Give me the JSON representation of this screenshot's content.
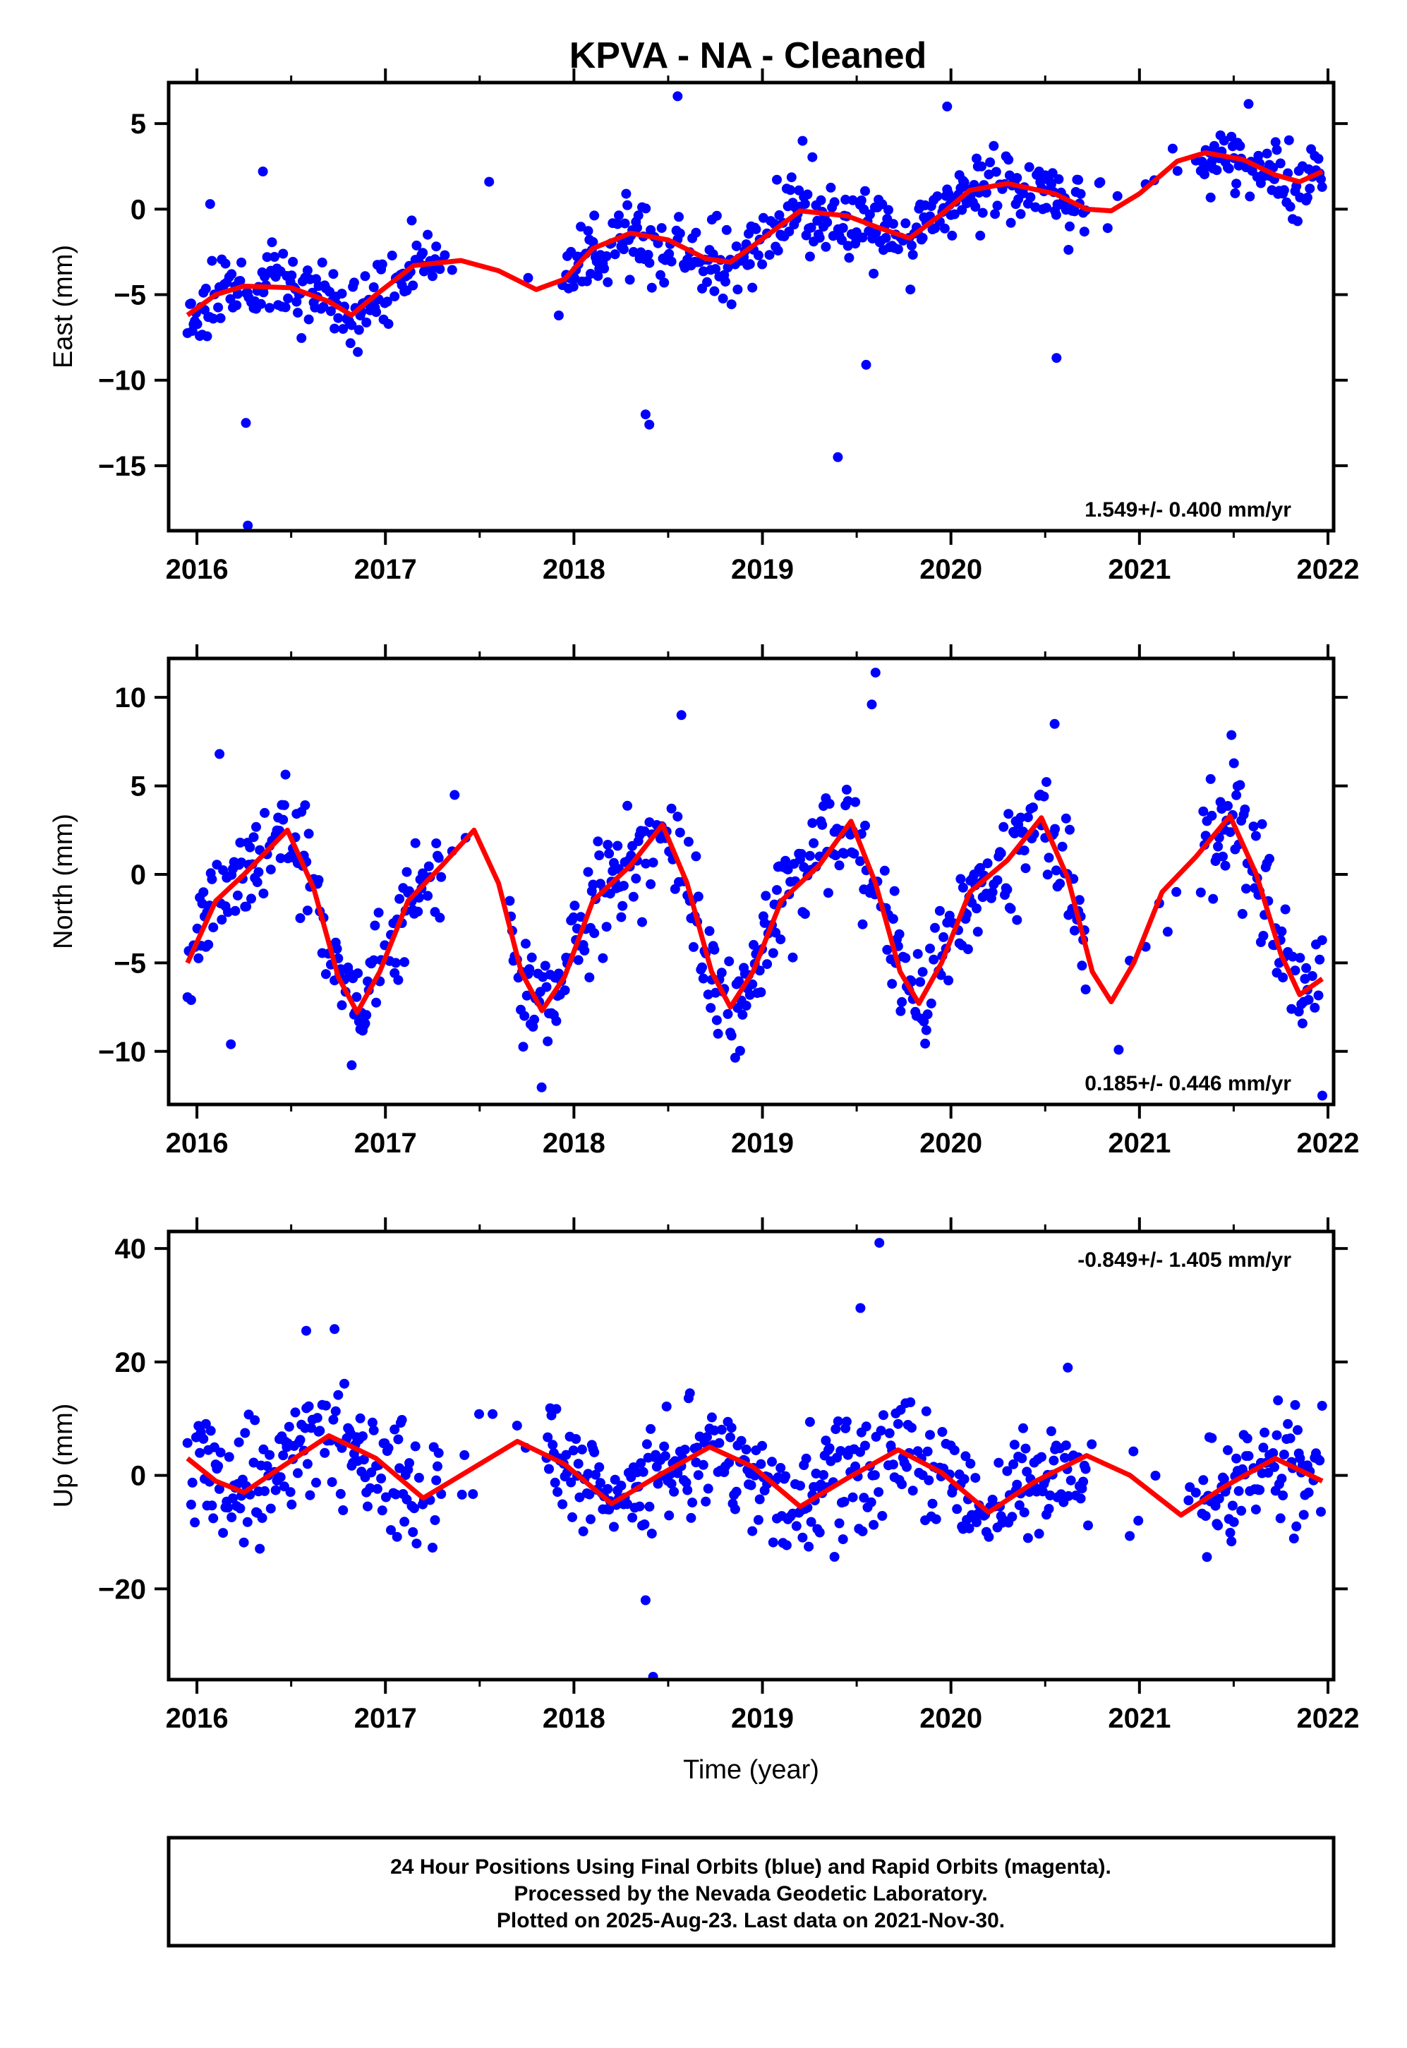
{
  "title": "KPVA  - NA - Cleaned",
  "colors": {
    "points": "#0000ff",
    "model": "#ff0000",
    "frame": "#000000"
  },
  "footer": {
    "line1": "24 Hour Positions Using Final Orbits (blue) and Rapid Orbits (magenta).",
    "line2": "Processed by the Nevada Geodetic Laboratory.",
    "line3": "Plotted on 2025-Aug-23. Last data on 2021-Nov-30."
  },
  "chart_data": [
    {
      "type": "scatter",
      "ylabel": "East (mm)",
      "xlabel": "",
      "rate": "1.549+/- 0.400 mm/yr",
      "rate_position": "bottom-right",
      "xlim": [
        2015.85,
        2022.03
      ],
      "ylim": [
        -18.8,
        7.4
      ],
      "xticks": [
        2016,
        2017,
        2018,
        2019,
        2020,
        2021,
        2022
      ],
      "yticks": [
        5,
        0,
        -5,
        -10,
        -15
      ],
      "gaps": [
        [
          2017.3,
          2017.95
        ],
        [
          2020.72,
          2021.32
        ]
      ],
      "seed": 11,
      "noise": 1.1,
      "outliers": [
        [
          2016.26,
          -12.5
        ],
        [
          2016.27,
          -18.5
        ],
        [
          2018.38,
          -12.0
        ],
        [
          2018.4,
          -12.6
        ],
        [
          2019.4,
          -14.5
        ],
        [
          2016.35,
          2.2
        ],
        [
          2017.55,
          1.6
        ],
        [
          2020.56,
          -8.7
        ],
        [
          2019.55,
          -9.1
        ],
        [
          2016.07,
          0.3
        ],
        [
          2019.98,
          6.0
        ],
        [
          2018.55,
          6.6
        ]
      ],
      "series": [
        {
          "name": "model",
          "values": [
            [
              2015.95,
              -6.2
            ],
            [
              2016.1,
              -5.0
            ],
            [
              2016.25,
              -4.5
            ],
            [
              2016.5,
              -4.6
            ],
            [
              2016.7,
              -5.4
            ],
            [
              2016.82,
              -6.2
            ],
            [
              2016.95,
              -5.0
            ],
            [
              2017.15,
              -3.3
            ],
            [
              2017.4,
              -3.0
            ],
            [
              2017.6,
              -3.6
            ],
            [
              2017.8,
              -4.7
            ],
            [
              2017.95,
              -4.1
            ],
            [
              2018.1,
              -2.3
            ],
            [
              2018.3,
              -1.4
            ],
            [
              2018.5,
              -1.8
            ],
            [
              2018.7,
              -2.9
            ],
            [
              2018.83,
              -3.1
            ],
            [
              2018.98,
              -1.9
            ],
            [
              2019.2,
              -0.1
            ],
            [
              2019.45,
              -0.4
            ],
            [
              2019.62,
              -1.1
            ],
            [
              2019.78,
              -1.7
            ],
            [
              2019.95,
              -0.3
            ],
            [
              2020.1,
              1.1
            ],
            [
              2020.3,
              1.5
            ],
            [
              2020.55,
              0.9
            ],
            [
              2020.72,
              0.0
            ],
            [
              2020.85,
              -0.1
            ],
            [
              2021.0,
              0.9
            ],
            [
              2021.2,
              2.8
            ],
            [
              2021.35,
              3.3
            ],
            [
              2021.55,
              2.9
            ],
            [
              2021.72,
              2.0
            ],
            [
              2021.85,
              1.6
            ],
            [
              2021.97,
              2.2
            ]
          ]
        }
      ]
    },
    {
      "type": "scatter",
      "ylabel": "North (mm)",
      "xlabel": "",
      "rate": "0.185+/- 0.446 mm/yr",
      "rate_position": "bottom-right",
      "xlim": [
        2015.85,
        2022.03
      ],
      "ylim": [
        -13.0,
        12.2
      ],
      "xticks": [
        2016,
        2017,
        2018,
        2019,
        2020,
        2021,
        2022
      ],
      "yticks": [
        10,
        5,
        0,
        -5,
        -10
      ],
      "gaps": [
        [
          2017.3,
          2017.65
        ],
        [
          2020.72,
          2021.32
        ]
      ],
      "seed": 23,
      "noise": 1.5,
      "outliers": [
        [
          2016.12,
          6.8
        ],
        [
          2016.18,
          -9.6
        ],
        [
          2019.6,
          11.4
        ],
        [
          2018.57,
          9.0
        ],
        [
          2019.58,
          9.6
        ],
        [
          2020.55,
          8.5
        ],
        [
          2021.97,
          -12.5
        ]
      ],
      "series": [
        {
          "name": "model",
          "values": [
            [
              2015.95,
              -5.0
            ],
            [
              2016.1,
              -1.5
            ],
            [
              2016.25,
              0.0
            ],
            [
              2016.48,
              2.5
            ],
            [
              2016.62,
              -0.8
            ],
            [
              2016.75,
              -5.8
            ],
            [
              2016.85,
              -7.8
            ],
            [
              2016.97,
              -5.5
            ],
            [
              2017.12,
              -1.5
            ],
            [
              2017.3,
              0.5
            ],
            [
              2017.47,
              2.5
            ],
            [
              2017.6,
              -0.5
            ],
            [
              2017.72,
              -5.5
            ],
            [
              2017.83,
              -7.7
            ],
            [
              2017.95,
              -5.8
            ],
            [
              2018.1,
              -1.5
            ],
            [
              2018.3,
              0.5
            ],
            [
              2018.47,
              2.8
            ],
            [
              2018.6,
              -0.5
            ],
            [
              2018.73,
              -5.5
            ],
            [
              2018.83,
              -7.5
            ],
            [
              2018.95,
              -5.5
            ],
            [
              2019.1,
              -1.5
            ],
            [
              2019.3,
              0.5
            ],
            [
              2019.47,
              3.0
            ],
            [
              2019.6,
              -0.5
            ],
            [
              2019.73,
              -5.5
            ],
            [
              2019.83,
              -7.3
            ],
            [
              2019.95,
              -5.0
            ],
            [
              2020.1,
              -1.0
            ],
            [
              2020.3,
              0.8
            ],
            [
              2020.48,
              3.2
            ],
            [
              2020.62,
              -0.2
            ],
            [
              2020.75,
              -5.5
            ],
            [
              2020.85,
              -7.2
            ],
            [
              2020.97,
              -5.0
            ],
            [
              2021.12,
              -1.0
            ],
            [
              2021.3,
              1.0
            ],
            [
              2021.48,
              3.3
            ],
            [
              2021.62,
              0.0
            ],
            [
              2021.75,
              -4.5
            ],
            [
              2021.85,
              -6.8
            ],
            [
              2021.97,
              -5.9
            ]
          ]
        }
      ]
    },
    {
      "type": "scatter",
      "ylabel": "Up (mm)",
      "xlabel": "Time (year)",
      "rate": "-0.849+/- 1.405 mm/yr",
      "rate_position": "top-right",
      "xlim": [
        2015.85,
        2022.03
      ],
      "ylim": [
        -36.0,
        43.0
      ],
      "xticks": [
        2016,
        2017,
        2018,
        2019,
        2020,
        2021,
        2022
      ],
      "yticks": [
        40,
        20,
        0,
        -20
      ],
      "gaps": [
        [
          2017.3,
          2017.85
        ],
        [
          2020.72,
          2021.32
        ]
      ],
      "seed": 37,
      "noise": 5.0,
      "outliers": [
        [
          2019.62,
          41.0
        ],
        [
          2018.42,
          -35.5
        ],
        [
          2018.38,
          -22.0
        ],
        [
          2016.58,
          25.5
        ],
        [
          2019.52,
          29.5
        ],
        [
          2020.62,
          19.0
        ],
        [
          2016.73,
          25.8
        ]
      ],
      "series": [
        {
          "name": "model",
          "values": [
            [
              2015.95,
              3.0
            ],
            [
              2016.1,
              -1.0
            ],
            [
              2016.25,
              -3.0
            ],
            [
              2016.45,
              1.5
            ],
            [
              2016.7,
              7.0
            ],
            [
              2016.95,
              3.0
            ],
            [
              2017.2,
              -4.0
            ],
            [
              2017.45,
              1.0
            ],
            [
              2017.7,
              6.0
            ],
            [
              2017.95,
              2.0
            ],
            [
              2018.2,
              -5.0
            ],
            [
              2018.45,
              0.0
            ],
            [
              2018.72,
              5.0
            ],
            [
              2018.95,
              1.5
            ],
            [
              2019.2,
              -5.5
            ],
            [
              2019.45,
              -0.5
            ],
            [
              2019.72,
              4.5
            ],
            [
              2019.95,
              0.5
            ],
            [
              2020.2,
              -6.5
            ],
            [
              2020.45,
              -1.0
            ],
            [
              2020.72,
              3.5
            ],
            [
              2020.95,
              0.0
            ],
            [
              2021.22,
              -7.0
            ],
            [
              2021.45,
              -2.0
            ],
            [
              2021.72,
              3.0
            ],
            [
              2021.97,
              -1.0
            ]
          ]
        }
      ]
    }
  ]
}
